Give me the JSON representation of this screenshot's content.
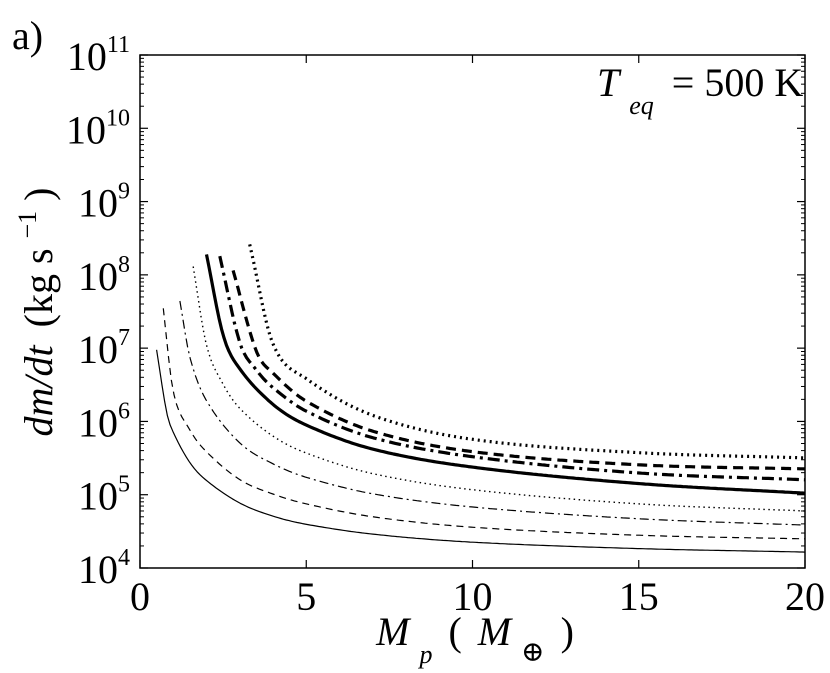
{
  "panel_label": "a)",
  "chart_data": {
    "type": "line",
    "title": "",
    "annotation": {
      "T": "T",
      "sub": "eq",
      "rest": "= 500 K"
    },
    "xlabel": {
      "main": "M",
      "sub": "p",
      "paren_open": "(",
      "M": "M",
      "M_sub": "⊕",
      "paren_close": ")"
    },
    "ylabel": {
      "text": "dm/dt",
      "unit": "(kg s",
      "unit_exp": "−1",
      "unit_close": ")"
    },
    "xlim": [
      0,
      20
    ],
    "ylim": [
      10000,
      100000000000
    ],
    "yscale": "log",
    "xticks": [
      "0",
      "5",
      "10",
      "15",
      "20"
    ],
    "xtick_values": [
      0,
      5,
      10,
      15,
      20
    ],
    "yticks": [
      {
        "base": "10",
        "exp": "4"
      },
      {
        "base": "10",
        "exp": "5"
      },
      {
        "base": "10",
        "exp": "6"
      },
      {
        "base": "10",
        "exp": "7"
      },
      {
        "base": "10",
        "exp": "8"
      },
      {
        "base": "10",
        "exp": "9"
      },
      {
        "base": "10",
        "exp": "10"
      },
      {
        "base": "10",
        "exp": "11"
      }
    ],
    "ytick_values": [
      10000,
      100000,
      1000000,
      10000000,
      100000000,
      1000000000,
      10000000000,
      100000000000
    ],
    "grid": false,
    "series": [
      {
        "style": "thin-solid",
        "x": [
          0.5,
          0.8,
          1,
          1.5,
          2,
          3,
          4,
          5,
          7,
          10,
          15,
          20
        ],
        "y": [
          9500000,
          1350000,
          715000,
          275000,
          156000,
          77000,
          51000,
          39500,
          29000,
          22500,
          18400,
          16500
        ]
      },
      {
        "style": "thin-dashed",
        "x": [
          0.7,
          1,
          1.5,
          2,
          3,
          4,
          5,
          7,
          10,
          15,
          20
        ],
        "y": [
          35000000,
          2560000,
          766000,
          385000,
          161000,
          102000,
          75000,
          50000,
          36000,
          28000,
          25000
        ]
      },
      {
        "style": "thin-dashdot",
        "x": [
          1.2,
          1.5,
          2,
          3,
          4,
          5,
          7,
          10,
          15,
          20
        ],
        "y": [
          44000000,
          7540000,
          1920000,
          510000,
          264000,
          173000,
          103000,
          68000,
          47000,
          38500
        ]
      },
      {
        "style": "thin-dotted",
        "x": [
          1.6,
          2,
          2.5,
          3,
          4,
          5,
          7,
          10,
          15,
          20
        ],
        "y": [
          130000000,
          11000000,
          3220000,
          1510000,
          630000,
          370000,
          194000,
          117000,
          75000,
          60000
        ]
      },
      {
        "style": "thick-solid",
        "x": [
          2,
          2.5,
          3,
          4,
          5,
          7,
          10,
          15,
          20
        ],
        "y": [
          190000000,
          15100000,
          5230000,
          1710000,
          892000,
          419000,
          238000,
          142000,
          105000
        ]
      },
      {
        "style": "thick-dashdot",
        "x": [
          2.4,
          3,
          3.5,
          4,
          5,
          7,
          10,
          15,
          20
        ],
        "y": [
          180000000,
          12000000,
          5040000,
          2890000,
          1380000,
          600000,
          330000,
          198000,
          160000
        ]
      },
      {
        "style": "thick-dashed",
        "x": [
          2.8,
          3.5,
          4,
          5,
          7,
          10,
          15,
          20
        ],
        "y": [
          115000000,
          9070000,
          4570000,
          1890000,
          736000,
          387000,
          256000,
          225000
        ]
      },
      {
        "style": "thick-dotted",
        "x": [
          3.3,
          4,
          5,
          7,
          10,
          15,
          20
        ],
        "y": [
          260000000,
          11400000,
          3840000,
          1210000,
          570000,
          375000,
          318000
        ]
      }
    ]
  }
}
